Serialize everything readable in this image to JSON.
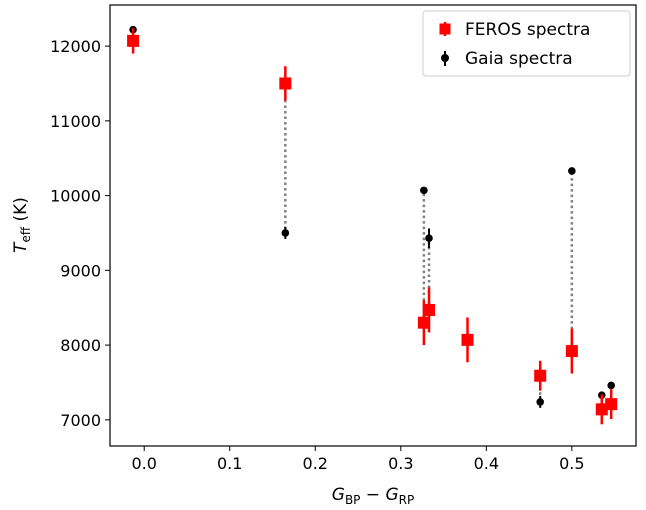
{
  "chart_data": {
    "type": "scatter",
    "xlabel": {
      "main": "G",
      "sub1": "BP",
      "minus": " − ",
      "main2": "G",
      "sub2": "RP"
    },
    "ylabel": {
      "main": "T",
      "sub": "eff",
      "unit": " (K)"
    },
    "xlim": [
      -0.04,
      0.575
    ],
    "ylim": [
      6650,
      12550
    ],
    "xticks": [
      0.0,
      0.1,
      0.2,
      0.3,
      0.4,
      0.5
    ],
    "xtick_labels": [
      "0.0",
      "0.1",
      "0.2",
      "0.3",
      "0.4",
      "0.5"
    ],
    "yticks": [
      7000,
      8000,
      9000,
      10000,
      11000,
      12000
    ],
    "ytick_labels": [
      "7000",
      "8000",
      "9000",
      "10000",
      "11000",
      "12000"
    ],
    "legend_position": "top-right",
    "series": [
      {
        "name": "FEROS spectra",
        "color": "#ff0000",
        "marker": "square",
        "points": [
          {
            "x": -0.013,
            "y": 12070,
            "err": 170
          },
          {
            "x": 0.165,
            "y": 11500,
            "err": 230
          },
          {
            "x": 0.327,
            "y": 8300,
            "err": 300
          },
          {
            "x": 0.333,
            "y": 8470,
            "err": 300
          },
          {
            "x": 0.378,
            "y": 8070,
            "err": 300
          },
          {
            "x": 0.463,
            "y": 7590,
            "err": 200
          },
          {
            "x": 0.5,
            "y": 7920,
            "err": 300
          },
          {
            "x": 0.535,
            "y": 7140,
            "err": 200
          },
          {
            "x": 0.546,
            "y": 7210,
            "err": 200
          }
        ]
      },
      {
        "name": "Gaia spectra",
        "color": "#000000",
        "marker": "circle",
        "points": [
          {
            "x": -0.013,
            "y": 12220,
            "err": 0
          },
          {
            "x": 0.165,
            "y": 9500,
            "err": 80
          },
          {
            "x": 0.327,
            "y": 10070,
            "err": 0
          },
          {
            "x": 0.333,
            "y": 9430,
            "err": 130
          },
          {
            "x": 0.378,
            "y": 8070,
            "err": 0
          },
          {
            "x": 0.463,
            "y": 7240,
            "err": 80
          },
          {
            "x": 0.5,
            "y": 10330,
            "err": 0
          },
          {
            "x": 0.535,
            "y": 7330,
            "err": 0
          },
          {
            "x": 0.546,
            "y": 7460,
            "err": 0
          }
        ]
      }
    ]
  }
}
